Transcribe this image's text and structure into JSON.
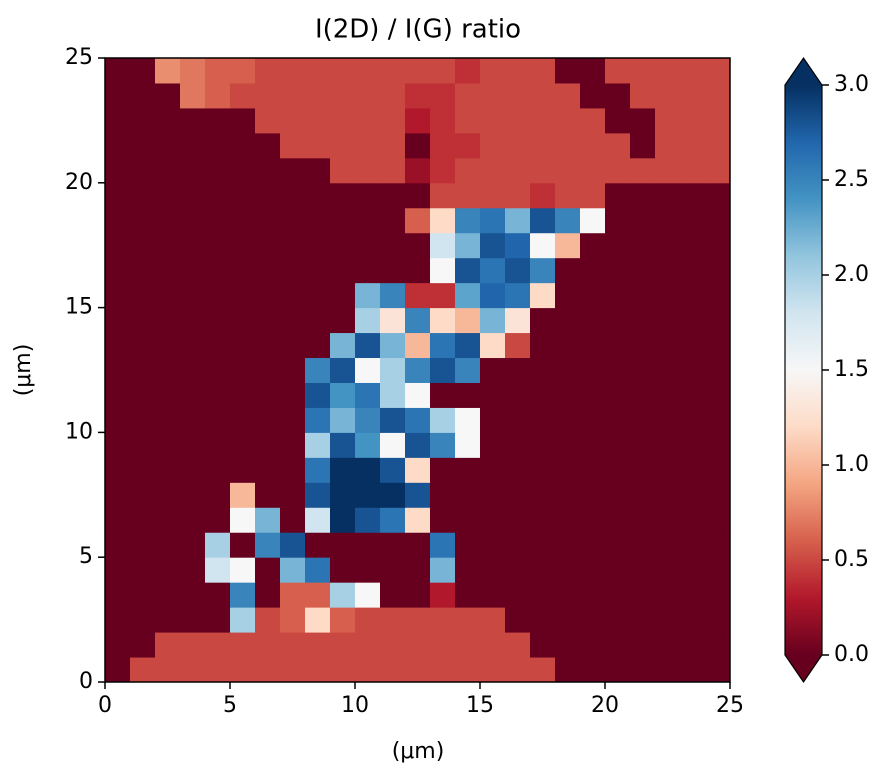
{
  "chart_data": {
    "type": "heatmap",
    "title": "I(2D) / I(G) ratio",
    "xlabel": "(μm)",
    "ylabel": "(μm)",
    "xlim": [
      0,
      25
    ],
    "ylim": [
      0,
      25
    ],
    "xticks": [
      0,
      5,
      10,
      15,
      20,
      25
    ],
    "yticks": [
      0,
      5,
      10,
      15,
      20,
      25
    ],
    "clim": [
      0,
      3
    ],
    "cticks": [
      {
        "value": 0,
        "label": "0.0"
      },
      0.5,
      {
        "value": 1,
        "label": "1.0"
      },
      1.5,
      {
        "value": 2,
        "label": "2.0"
      },
      2.5,
      {
        "value": 3,
        "label": "3.0"
      }
    ],
    "colors": [
      "#67001f",
      "#b2182b",
      "#d6604d",
      "#f4a582",
      "#fddbc7",
      "#f7f7f7",
      "#d1e5f0",
      "#92c5de",
      "#4393c3",
      "#2166ac",
      "#053061"
    ],
    "z": [
      [
        0,
        0.5,
        0.5,
        0.5,
        0.5,
        0.5,
        0.5,
        0.5,
        0.5,
        0.5,
        0.5,
        0.5,
        0.5,
        0.5,
        0.5,
        0.5,
        0.5,
        0.5,
        0,
        0,
        0,
        0,
        0,
        0,
        0
      ],
      [
        0,
        0,
        0.5,
        0.5,
        0.5,
        0.5,
        0.5,
        0.5,
        0.5,
        0.5,
        0.5,
        0.5,
        0.5,
        0.5,
        0.5,
        0.5,
        0.5,
        0,
        0,
        0,
        0,
        0,
        0,
        0,
        0
      ],
      [
        0,
        0,
        0,
        0,
        0,
        2.0,
        0.5,
        0.6,
        1.2,
        0.6,
        0.5,
        0.5,
        0.5,
        0.5,
        0.5,
        0.5,
        0,
        0,
        0,
        0,
        0,
        0,
        0,
        0,
        0
      ],
      [
        0,
        0,
        0,
        0,
        0,
        2.5,
        0,
        0.6,
        0.6,
        2.0,
        1.5,
        0,
        0,
        0.3,
        0,
        0,
        0,
        0,
        0,
        0,
        0,
        0,
        0,
        0,
        0
      ],
      [
        0,
        0,
        0,
        0,
        1.8,
        1.5,
        0,
        2.2,
        2.6,
        0,
        0,
        0,
        0,
        2.2,
        0,
        0,
        0,
        0,
        0,
        0,
        0,
        0,
        0,
        0,
        0
      ],
      [
        0,
        0,
        0,
        0,
        2.0,
        0,
        2.5,
        2.8,
        0,
        0,
        0,
        0,
        0,
        2.6,
        0,
        0,
        0,
        0,
        0,
        0,
        0,
        0,
        0,
        0,
        0
      ],
      [
        0,
        0,
        0,
        0,
        0,
        1.5,
        2.2,
        0,
        1.8,
        3,
        2.8,
        2.6,
        1.2,
        0,
        0,
        0,
        0,
        0,
        0,
        0,
        0,
        0,
        0,
        0,
        0
      ],
      [
        0,
        0,
        0,
        0,
        0,
        1.0,
        0,
        0,
        2.8,
        3,
        3,
        3,
        2.8,
        0,
        0,
        0,
        0,
        0,
        0,
        0,
        0,
        0,
        0,
        0,
        0
      ],
      [
        0,
        0,
        0,
        0,
        0,
        0,
        0,
        0,
        2.6,
        3,
        3,
        2.8,
        1.2,
        0,
        0,
        0,
        0,
        0,
        0,
        0,
        0,
        0,
        0,
        0,
        0
      ],
      [
        0,
        0,
        0,
        0,
        0,
        0,
        0,
        0,
        2.0,
        2.8,
        2.4,
        1.5,
        2.8,
        2.5,
        1.5,
        0,
        0,
        0,
        0,
        0,
        0,
        0,
        0,
        0,
        0
      ],
      [
        0,
        0,
        0,
        0,
        0,
        0,
        0,
        0,
        2.6,
        2.2,
        2.5,
        2.8,
        2.6,
        2.0,
        1.5,
        0,
        0,
        0,
        0,
        0,
        0,
        0,
        0,
        0,
        0
      ],
      [
        0,
        0,
        0,
        0,
        0,
        0,
        0,
        0,
        2.8,
        2.4,
        2.6,
        2.0,
        1.5,
        0,
        0,
        0,
        0,
        0,
        0,
        0,
        0,
        0,
        0,
        0,
        0
      ],
      [
        0,
        0,
        0,
        0,
        0,
        0,
        0,
        0,
        2.5,
        2.8,
        1.5,
        2.0,
        2.5,
        2.8,
        2.5,
        0,
        0,
        0,
        0,
        0,
        0,
        0,
        0,
        0,
        0
      ],
      [
        0,
        0,
        0,
        0,
        0,
        0,
        0,
        0,
        0,
        2.2,
        2.8,
        2.2,
        1.0,
        2.6,
        2.8,
        1.2,
        0.5,
        0,
        0,
        0,
        0,
        0,
        0,
        0,
        0
      ],
      [
        0,
        0,
        0,
        0,
        0,
        0,
        0,
        0,
        0,
        0,
        2.0,
        1.3,
        2.5,
        1.2,
        1.0,
        2.2,
        1.3,
        0,
        0,
        0,
        0,
        0,
        0,
        0,
        0
      ],
      [
        0,
        0,
        0,
        0,
        0,
        0,
        0,
        0,
        0,
        0,
        2.2,
        2.5,
        0.4,
        0.4,
        2.3,
        2.7,
        2.6,
        1.2,
        0,
        0,
        0,
        0,
        0,
        0,
        0
      ],
      [
        0,
        0,
        0,
        0,
        0,
        0,
        0,
        0,
        0,
        0,
        0,
        0,
        0,
        1.5,
        2.8,
        2.6,
        2.8,
        2.5,
        0,
        0,
        0,
        0,
        0,
        0,
        0
      ],
      [
        0,
        0,
        0,
        0,
        0,
        0,
        0,
        0,
        0,
        0,
        0,
        0,
        0,
        1.8,
        2.2,
        2.8,
        2.7,
        1.5,
        1.0,
        0,
        0,
        0,
        0,
        0,
        0
      ],
      [
        0,
        0,
        0,
        0,
        0,
        0,
        0,
        0,
        0,
        0,
        0,
        0,
        0.6,
        1.2,
        2.5,
        2.6,
        2.2,
        2.8,
        2.5,
        1.5,
        0,
        0,
        0,
        0,
        0
      ],
      [
        0,
        0,
        0,
        0,
        0,
        0,
        0,
        0,
        0,
        0,
        0,
        0,
        0,
        0.5,
        0.5,
        0.5,
        0.5,
        0.4,
        0.5,
        0.5,
        0,
        0,
        0,
        0,
        0
      ],
      [
        0,
        0,
        0,
        0,
        0,
        0,
        0,
        0,
        0,
        0.5,
        0.5,
        0.5,
        0.2,
        0.4,
        0.5,
        0.5,
        0.5,
        0.5,
        0.5,
        0.5,
        0.5,
        0.5,
        0.5,
        0.5,
        0.5
      ],
      [
        0,
        0,
        0,
        0,
        0,
        0,
        0,
        0.5,
        0.5,
        0.5,
        0.5,
        0.5,
        0,
        0.4,
        0.4,
        0.5,
        0.5,
        0.5,
        0.5,
        0.5,
        0.5,
        0,
        0.5,
        0.5,
        0.5
      ],
      [
        0,
        0,
        0,
        0,
        0,
        0,
        0.5,
        0.5,
        0.5,
        0.5,
        0.5,
        0.5,
        0.3,
        0.4,
        0.5,
        0.5,
        0.5,
        0.5,
        0.5,
        0.5,
        0,
        0,
        0.5,
        0.5,
        0.5
      ],
      [
        0,
        0,
        0,
        0.7,
        0.6,
        0.5,
        0.5,
        0.5,
        0.5,
        0.5,
        0.5,
        0.5,
        0.4,
        0.4,
        0.5,
        0.5,
        0.5,
        0.5,
        0.5,
        0,
        0,
        0.5,
        0.5,
        0.5,
        0.5
      ],
      [
        0,
        0,
        0.8,
        0.7,
        0.6,
        0.6,
        0.5,
        0.5,
        0.5,
        0.5,
        0.5,
        0.5,
        0.5,
        0.5,
        0.4,
        0.5,
        0.5,
        0.5,
        0,
        0,
        0.5,
        0.5,
        0.5,
        0.5,
        0.5
      ]
    ]
  }
}
